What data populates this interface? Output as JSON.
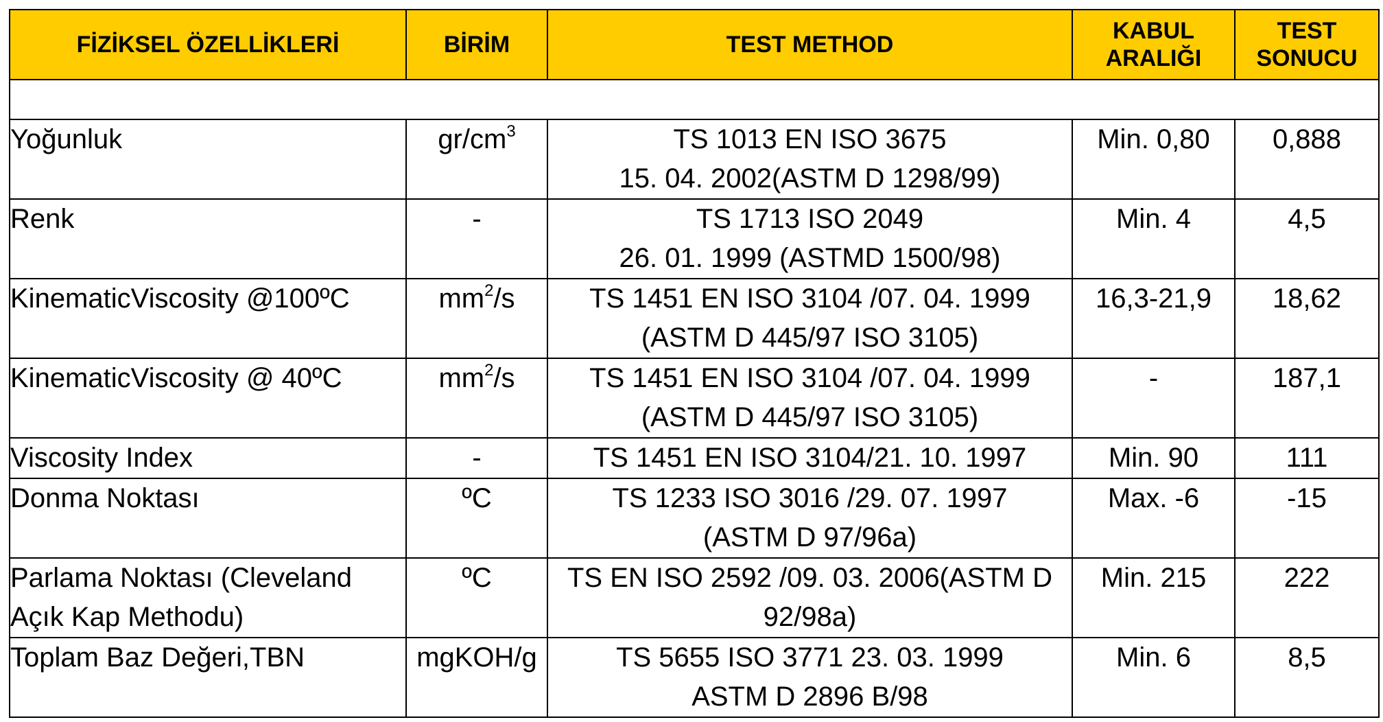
{
  "table": {
    "headers": [
      "FİZİKSEL ÖZELLİKLERİ",
      "BİRİM",
      "TEST METHOD",
      "KABUL ARALIĞI",
      "TEST SONUCU"
    ],
    "rows": [
      {
        "property": "Yoğunluk",
        "unit_base": "gr/cm",
        "unit_sup": "3",
        "unit_tail": "",
        "method": [
          "TS 1013 EN ISO 3675",
          "15. 04. 2002(ASTM D 1298/99)"
        ],
        "range": "Min. 0,80",
        "result": "0,888"
      },
      {
        "property": "Renk",
        "unit_base": "-",
        "unit_sup": "",
        "unit_tail": "",
        "method": [
          "TS 1713 ISO 2049",
          "26. 01. 1999 (ASTMD 1500/98)"
        ],
        "range": "Min. 4",
        "result": "4,5"
      },
      {
        "property": "KinematicViscosity @100ºC",
        "unit_base": "mm",
        "unit_sup": "2",
        "unit_tail": "/s",
        "method": [
          "TS 1451 EN ISO 3104 /07. 04. 1999",
          "(ASTM D 445/97 ISO 3105)"
        ],
        "range": "16,3-21,9",
        "result": "18,62"
      },
      {
        "property": "KinematicViscosity @ 40ºC",
        "unit_base": "mm",
        "unit_sup": "2",
        "unit_tail": "/s",
        "method": [
          "TS 1451 EN ISO 3104 /07. 04. 1999",
          "(ASTM D 445/97 ISO 3105)"
        ],
        "range": "-",
        "result": "187,1"
      },
      {
        "property": "Viscosity Index",
        "unit_base": "-",
        "unit_sup": "",
        "unit_tail": "",
        "method": [
          "TS 1451 EN ISO 3104/21. 10. 1997"
        ],
        "range": "Min. 90",
        "result": "111"
      },
      {
        "property": "Donma Noktası",
        "unit_base": "ºC",
        "unit_sup": "",
        "unit_tail": "",
        "method": [
          "TS 1233 ISO 3016 /29. 07. 1997",
          "(ASTM D 97/96a)"
        ],
        "range": "Max. -6",
        "result": "-15"
      },
      {
        "property": "Parlama Noktası (Cleveland Açık Kap Methodu)",
        "property_lines": [
          "Parlama Noktası (Cleveland",
          "Açık Kap Methodu)"
        ],
        "unit_base": "ºC",
        "unit_sup": "",
        "unit_tail": "",
        "method": [
          "TS EN ISO 2592 /09. 03. 2006(ASTM D",
          "92/98a)"
        ],
        "range": "Min. 215",
        "result": "222"
      },
      {
        "property": "Toplam Baz Değeri,TBN",
        "unit_base": "mgKOH/g",
        "unit_sup": "",
        "unit_tail": "",
        "method": [
          "TS 5655 ISO 3771 23. 03. 1999",
          "ASTM D 2896 B/98"
        ],
        "range": "Min. 6",
        "result": "8,5"
      }
    ]
  },
  "colors": {
    "header_background": "#FFCC00",
    "border": "#000000",
    "text": "#000000"
  }
}
